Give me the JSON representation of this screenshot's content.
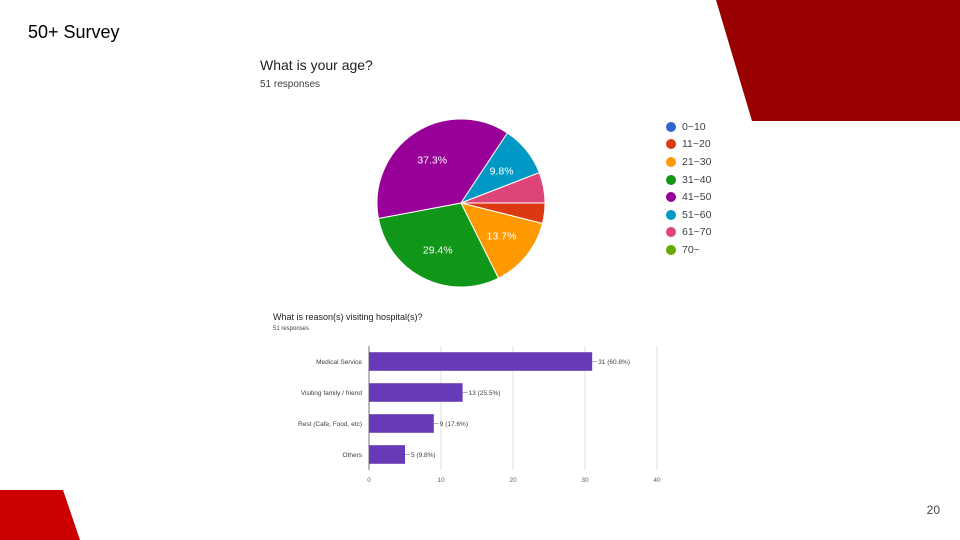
{
  "slide": {
    "title": "50+ Survey",
    "page_number": "20",
    "accent_color": "#990000",
    "accent_color_light": "#cc0000"
  },
  "chart_data": [
    {
      "type": "pie",
      "title": "What is your age?",
      "subtitle": "51 responses",
      "legend_placement": "right",
      "slices": [
        {
          "label": "0~10",
          "value": 0,
          "color": "#3366cc",
          "percent_label": ""
        },
        {
          "label": "11~20",
          "value": 2,
          "color": "#dc3912",
          "percent_label": ""
        },
        {
          "label": "21~30",
          "value": 7,
          "color": "#ff9900",
          "percent_label": "13.7%"
        },
        {
          "label": "31~40",
          "value": 15,
          "color": "#109618",
          "percent_label": "29.4%"
        },
        {
          "label": "41~50",
          "value": 19,
          "color": "#990099",
          "percent_label": "37.3%"
        },
        {
          "label": "51~60",
          "value": 5,
          "color": "#0099c6",
          "percent_label": "9.8%"
        },
        {
          "label": "61~70",
          "value": 3,
          "color": "#dd4477",
          "percent_label": ""
        },
        {
          "label": "70~",
          "value": 0,
          "color": "#66aa00",
          "percent_label": ""
        }
      ]
    },
    {
      "type": "bar",
      "orientation": "horizontal",
      "title": "What is reason(s) visiting hospital(s)?",
      "subtitle": "51 responses",
      "categories": [
        "Medical Service",
        "Visiting family / friend",
        "Rest (Cafe, Food, etc)",
        "Others"
      ],
      "values": [
        31,
        13,
        9,
        5
      ],
      "data_labels": [
        "31 (60.8%)",
        "13 (25.5%)",
        "9 (17.6%)",
        "5 (9.8%)"
      ],
      "bar_color": "#673ab7",
      "xlim": [
        0,
        40
      ],
      "xticks": [
        "0",
        "10",
        "20",
        "30",
        "40"
      ],
      "grid": true
    }
  ]
}
